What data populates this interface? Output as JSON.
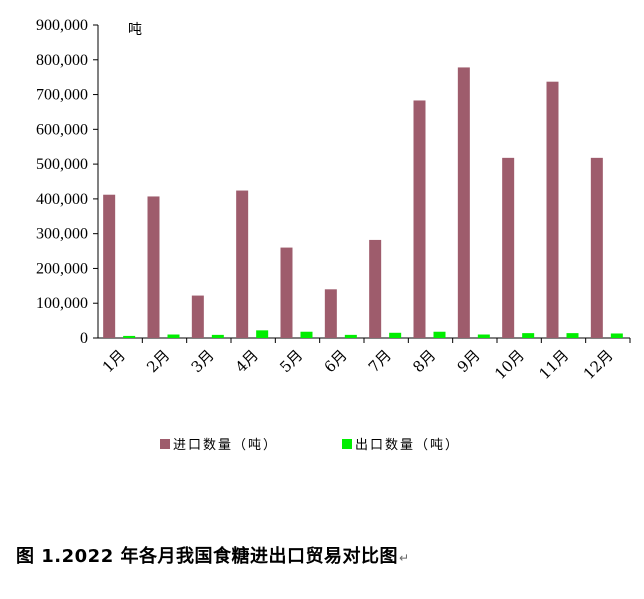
{
  "chart_data": {
    "type": "bar",
    "unit_label": "吨",
    "categories": [
      "1月",
      "2月",
      "3月",
      "4月",
      "5月",
      "6月",
      "7月",
      "8月",
      "9月",
      "10月",
      "11月",
      "12月"
    ],
    "ylim": [
      0,
      900000
    ],
    "yticks": [
      "0",
      "100,000",
      "200,000",
      "300,000",
      "400,000",
      "500,000",
      "600,000",
      "700,000",
      "800,000",
      "900,000"
    ],
    "series": [
      {
        "name": "进口数量（吨）",
        "color": "#9E5C6C",
        "values": [
          412000,
          407000,
          122000,
          424000,
          260000,
          140000,
          282000,
          683000,
          778000,
          518000,
          737000,
          518000
        ]
      },
      {
        "name": "出口数量（吨）",
        "color": "#00EE00",
        "values": [
          6000,
          10000,
          9000,
          22000,
          18000,
          9000,
          15000,
          18000,
          10000,
          14000,
          14000,
          13000
        ]
      }
    ],
    "legend": "bottom"
  },
  "caption": {
    "text": "图 1.2022 年各月我国食糖进出口贸易对比图",
    "mark": "↵"
  }
}
